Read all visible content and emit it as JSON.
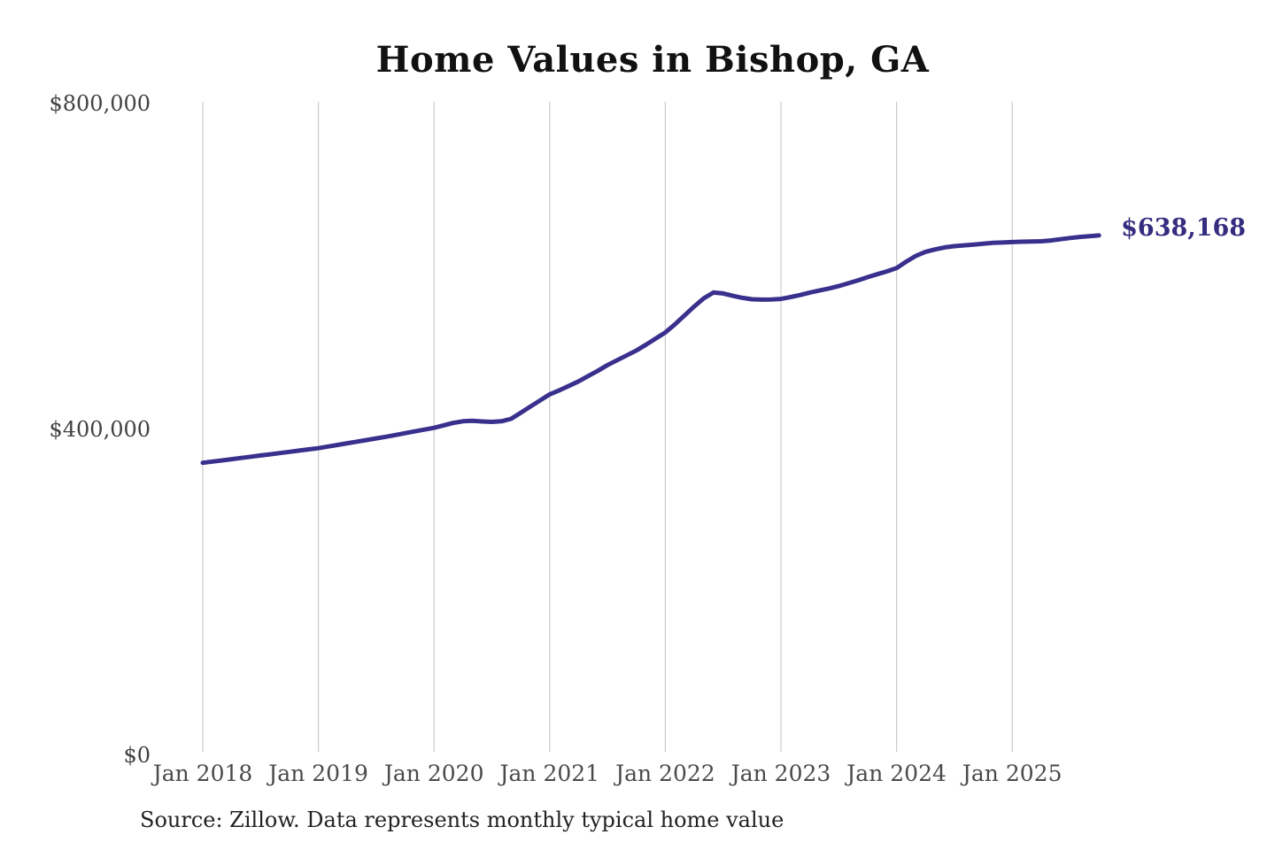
{
  "title": "Home Values in Bishop, GA",
  "y_axis": {
    "ticks": [
      "$800,000",
      "$400,000",
      "$0"
    ]
  },
  "annotation": {
    "end_label": "$638,168"
  },
  "source_note": "Source: Zillow. Data represents monthly typical home value",
  "colors": {
    "line": "#38308c",
    "annotation_text": "#342d80",
    "gridline": "#cbcbcb",
    "axis_text": "#4a4a4a",
    "title_text": "#111111"
  },
  "chart_data": {
    "type": "line",
    "title": "Home Values in Bishop, GA",
    "xlabel": "",
    "ylabel": "",
    "ylim": [
      0,
      800000
    ],
    "y_tick_values": [
      0,
      400000,
      800000
    ],
    "y_tick_labels": [
      "$0",
      "$400,000",
      "$800,000"
    ],
    "x_tick_labels": [
      "Jan 2018",
      "Jan 2019",
      "Jan 2020",
      "Jan 2021",
      "Jan 2022",
      "Jan 2023",
      "Jan 2024",
      "Jan 2025"
    ],
    "grid": "vertical-gridlines-at-january",
    "legend_position": "none",
    "series": [
      {
        "name": "Monthly typical home value",
        "start_month": "2018-01",
        "end_month": "2025-10",
        "interval": "monthly",
        "final_value": 638168,
        "values": [
          359000,
          360500,
          362000,
          363500,
          365000,
          366500,
          368000,
          369500,
          371000,
          372500,
          374000,
          375500,
          377000,
          379000,
          381000,
          383000,
          385000,
          387000,
          389000,
          391000,
          393200,
          395400,
          397600,
          399800,
          402000,
          405000,
          408000,
          410000,
          410500,
          409800,
          409200,
          410000,
          413000,
          420500,
          428000,
          435500,
          443000,
          448000,
          453500,
          459000,
          465500,
          472000,
          479000,
          485000,
          491000,
          497000,
          504000,
          511500,
          519000,
          529000,
          540000,
          551000,
          561000,
          568000,
          567000,
          564000,
          561500,
          559800,
          559400,
          559600,
          560200,
          562500,
          565000,
          568000,
          570500,
          573000,
          576000,
          579500,
          583000,
          587000,
          590500,
          594000,
          598000,
          606000,
          613000,
          618000,
          621000,
          623500,
          625000,
          626000,
          627000,
          628000,
          629000,
          629500,
          630000,
          630400,
          630700,
          631000,
          632000,
          633500,
          635000,
          636300,
          637300,
          638168
        ]
      }
    ]
  }
}
